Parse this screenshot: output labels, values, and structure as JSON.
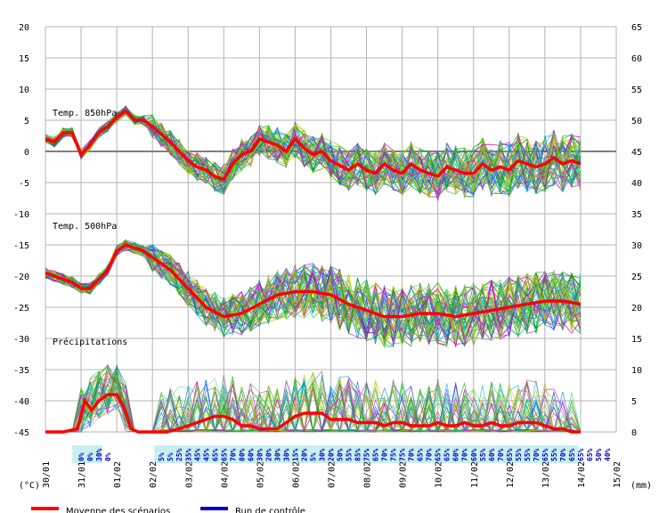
{
  "colors": {
    "grid": "#b4b4b4",
    "zero_line": "#808080",
    "mean": "#ff0000",
    "control": "#0000cc",
    "pct_band": "#c8f0f0",
    "member_palette": [
      "#00a000",
      "#33cc33",
      "#99bb00",
      "#c8c800",
      "#cc00cc",
      "#aa33aa",
      "#00aacc",
      "#0066ff",
      "#66cc99"
    ]
  },
  "chart_data": {
    "type": "line",
    "panels": [
      "Temp. 850hPa",
      "Temp. 500hPa",
      "Précipitations"
    ],
    "xlabel_dates": [
      "30/01",
      "31/01",
      "01/02",
      "02/02",
      "03/02",
      "04/02",
      "05/02",
      "06/02",
      "07/02",
      "08/02",
      "09/02",
      "10/02",
      "11/02",
      "12/02",
      "13/02",
      "14/02",
      "15/02"
    ],
    "left_axis": {
      "label": "(°C)",
      "ticks": [
        20,
        15,
        10,
        5,
        0,
        -5,
        -10,
        -15,
        -20,
        -25,
        -30,
        -35,
        -40,
        -45
      ],
      "ylim": [
        -45,
        20
      ]
    },
    "right_axis": {
      "label": "(mm)",
      "ticks": [
        65,
        60,
        55,
        50,
        45,
        40,
        35,
        30,
        25,
        20,
        15,
        10,
        5,
        0
      ],
      "ylim": [
        0,
        65
      ]
    },
    "ensemble_members": 50,
    "precip_probabilities": [
      "0%",
      "0%",
      "30%",
      "0%",
      "5%",
      "5%",
      "25%",
      "35%",
      "45%",
      "45%",
      "65%",
      "65%",
      "70%",
      "80%",
      "60%",
      "30%",
      "20%",
      "30%",
      "30%",
      "15%",
      "20%",
      "5%",
      "30%",
      "20%",
      "50%",
      "55%",
      "85%",
      "75%",
      "65%",
      "70%",
      "75%",
      "75%",
      "70%",
      "65%",
      "70%",
      "65%",
      "65%",
      "60%",
      "70%",
      "60%",
      "55%",
      "60%",
      "70%",
      "65%",
      "55%",
      "55%",
      "70%",
      "65%",
      "55%",
      "70%",
      "65%",
      "65%",
      "65%",
      "50%",
      "40%"
    ],
    "series": [
      {
        "name": "Moyenne des scénarios",
        "t850": [
          [
            0,
            2
          ],
          [
            0.25,
            1.5
          ],
          [
            0.5,
            3
          ],
          [
            0.75,
            3
          ],
          [
            1,
            -0.5
          ],
          [
            1.25,
            1
          ],
          [
            1.5,
            3
          ],
          [
            1.75,
            4
          ],
          [
            2,
            5.5
          ],
          [
            2.25,
            6.5
          ],
          [
            2.5,
            5
          ],
          [
            2.75,
            5
          ],
          [
            3,
            4
          ],
          [
            3.5,
            1.5
          ],
          [
            4,
            -1.5
          ],
          [
            4.25,
            -2.5
          ],
          [
            4.5,
            -3
          ],
          [
            4.75,
            -4
          ],
          [
            5,
            -4.5
          ],
          [
            5.25,
            -2
          ],
          [
            5.5,
            -0.5
          ],
          [
            5.75,
            0
          ],
          [
            6,
            2
          ],
          [
            6.25,
            1.5
          ],
          [
            6.5,
            1
          ],
          [
            6.75,
            0
          ],
          [
            7,
            2
          ],
          [
            7.25,
            0.5
          ],
          [
            7.5,
            -0.5
          ],
          [
            7.75,
            0
          ],
          [
            8,
            -1.5
          ],
          [
            8.5,
            -3
          ],
          [
            8.75,
            -2
          ],
          [
            9,
            -3
          ],
          [
            9.25,
            -3.5
          ],
          [
            9.5,
            -2
          ],
          [
            9.75,
            -3
          ],
          [
            10,
            -3.5
          ],
          [
            10.25,
            -2
          ],
          [
            10.5,
            -3
          ],
          [
            10.75,
            -3.5
          ],
          [
            11,
            -4
          ],
          [
            11.25,
            -2.5
          ],
          [
            11.5,
            -3
          ],
          [
            11.75,
            -3.5
          ],
          [
            12,
            -3.5
          ],
          [
            12.25,
            -2
          ],
          [
            12.5,
            -3
          ],
          [
            12.75,
            -2.5
          ],
          [
            13,
            -3
          ],
          [
            13.25,
            -1.5
          ],
          [
            13.5,
            -2
          ],
          [
            13.75,
            -2.5
          ],
          [
            14,
            -2
          ],
          [
            14.25,
            -1
          ],
          [
            14.5,
            -2
          ],
          [
            14.75,
            -1.5
          ],
          [
            15,
            -2
          ]
        ],
        "t500": [
          [
            0,
            -19.5
          ],
          [
            0.5,
            -20.5
          ],
          [
            0.75,
            -21
          ],
          [
            1,
            -22
          ],
          [
            1.25,
            -22
          ],
          [
            1.5,
            -20.5
          ],
          [
            1.75,
            -19
          ],
          [
            2,
            -16
          ],
          [
            2.25,
            -15
          ],
          [
            2.5,
            -15.5
          ],
          [
            2.75,
            -16
          ],
          [
            3,
            -17
          ],
          [
            3.5,
            -19
          ],
          [
            4,
            -22
          ],
          [
            4.5,
            -25
          ],
          [
            5,
            -26.5
          ],
          [
            5.5,
            -26
          ],
          [
            6,
            -24.5
          ],
          [
            6.5,
            -23
          ],
          [
            7,
            -22.5
          ],
          [
            7.5,
            -22.5
          ],
          [
            8,
            -23
          ],
          [
            8.5,
            -24.5
          ],
          [
            9,
            -25.5
          ],
          [
            9.5,
            -26.5
          ],
          [
            10,
            -26.5
          ],
          [
            10.5,
            -26
          ],
          [
            11,
            -26
          ],
          [
            11.5,
            -26.5
          ],
          [
            12,
            -26
          ],
          [
            12.5,
            -25.5
          ],
          [
            13,
            -25
          ],
          [
            13.5,
            -24.5
          ],
          [
            14,
            -24
          ],
          [
            14.5,
            -24
          ],
          [
            15,
            -24.5
          ]
        ],
        "precip": [
          [
            0,
            0
          ],
          [
            0.5,
            0
          ],
          [
            0.9,
            0.5
          ],
          [
            1.1,
            5
          ],
          [
            1.3,
            3.5
          ],
          [
            1.5,
            5
          ],
          [
            1.75,
            6
          ],
          [
            2,
            6
          ],
          [
            2.2,
            4
          ],
          [
            2.4,
            0.5
          ],
          [
            2.6,
            0
          ],
          [
            3,
            0
          ],
          [
            3.4,
            0
          ],
          [
            3.75,
            0.5
          ],
          [
            4,
            1
          ],
          [
            4.25,
            1.5
          ],
          [
            4.5,
            2
          ],
          [
            4.75,
            2.5
          ],
          [
            5,
            2.5
          ],
          [
            5.25,
            2
          ],
          [
            5.5,
            1
          ],
          [
            5.75,
            1
          ],
          [
            6,
            0.5
          ],
          [
            6.25,
            0.5
          ],
          [
            6.5,
            0.5
          ],
          [
            6.75,
            1.5
          ],
          [
            7,
            2.5
          ],
          [
            7.25,
            3
          ],
          [
            7.5,
            3
          ],
          [
            7.75,
            3
          ],
          [
            8,
            2
          ],
          [
            8.25,
            2
          ],
          [
            8.5,
            2
          ],
          [
            8.75,
            1.5
          ],
          [
            9,
            1.5
          ],
          [
            9.25,
            1.5
          ],
          [
            9.5,
            1
          ],
          [
            9.75,
            1.5
          ],
          [
            10,
            1.5
          ],
          [
            10.25,
            1
          ],
          [
            10.5,
            1
          ],
          [
            10.75,
            1
          ],
          [
            11,
            1.5
          ],
          [
            11.25,
            1
          ],
          [
            11.5,
            1
          ],
          [
            11.75,
            1.5
          ],
          [
            12,
            1
          ],
          [
            12.25,
            1
          ],
          [
            12.5,
            1.5
          ],
          [
            12.75,
            1
          ],
          [
            13,
            1
          ],
          [
            13.25,
            1.5
          ],
          [
            13.5,
            1.5
          ],
          [
            13.75,
            1.5
          ],
          [
            14,
            1
          ],
          [
            14.25,
            0.5
          ],
          [
            14.5,
            0.5
          ],
          [
            14.75,
            0
          ],
          [
            15,
            0
          ]
        ]
      },
      {
        "name": "Run de contrôle"
      }
    ]
  },
  "legend": {
    "mean_label": "Moyenne des scénarios",
    "control_label": "Run de contrôle"
  }
}
